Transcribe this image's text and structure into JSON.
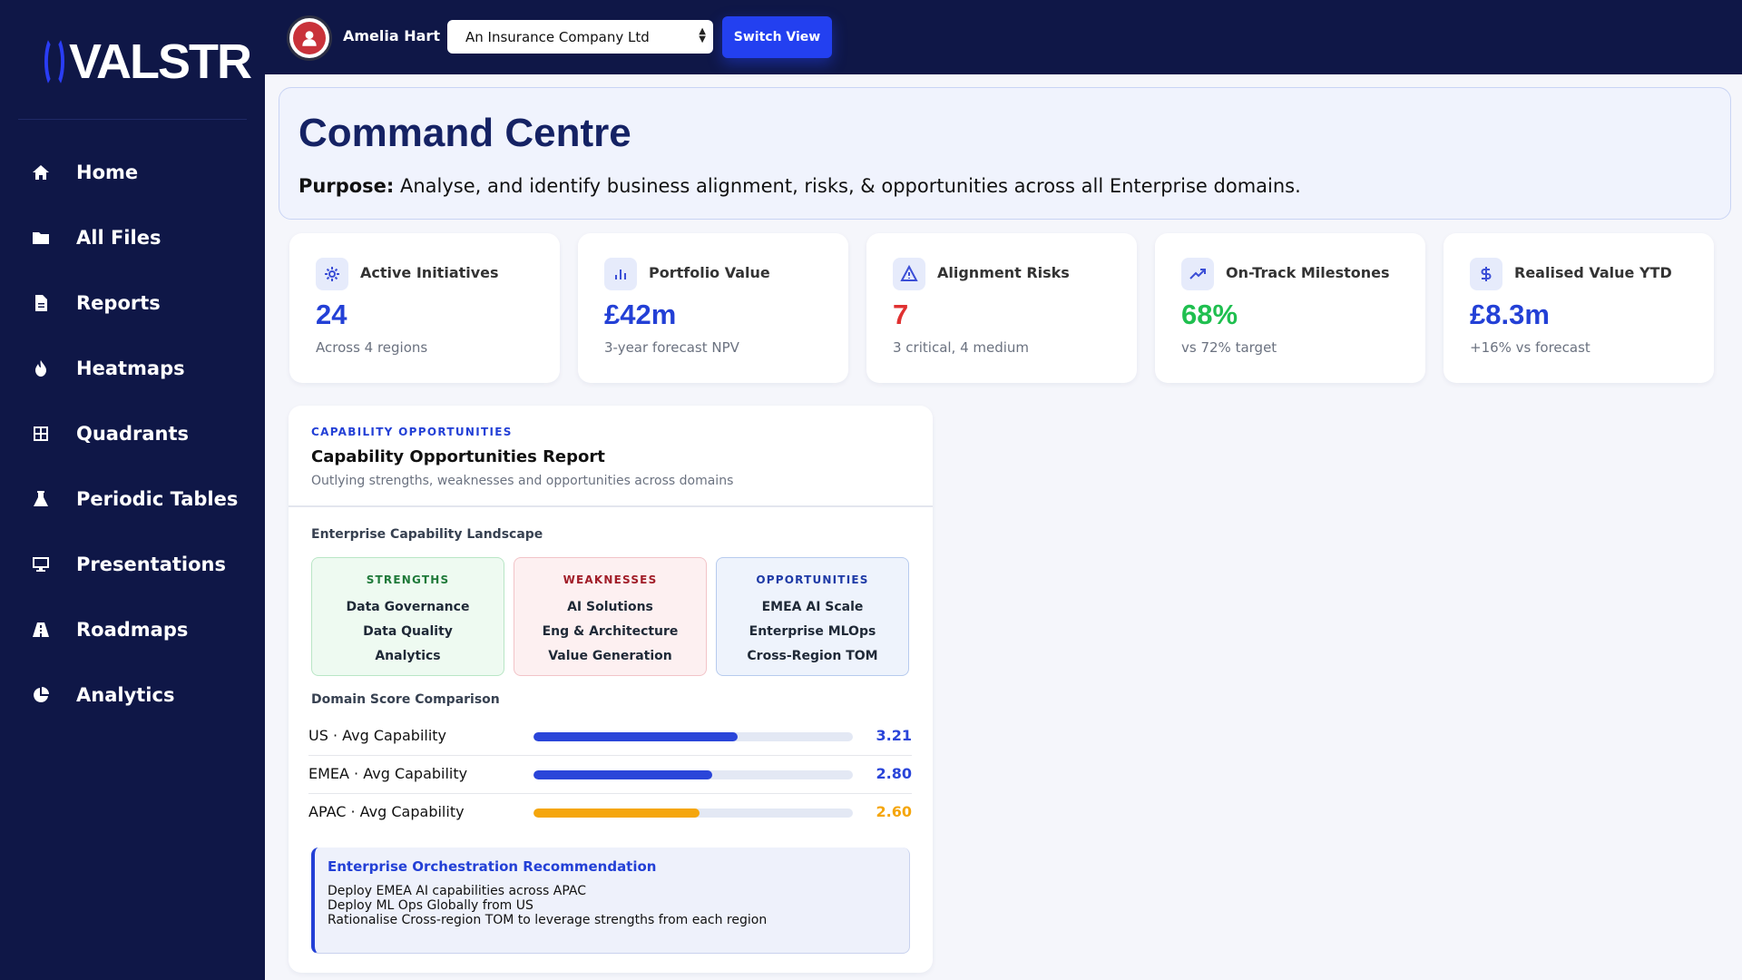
{
  "brand": {
    "logo_text": "VALSTR"
  },
  "sidebar": {
    "items": [
      {
        "label": "Home",
        "icon": "home-icon"
      },
      {
        "label": "All Files",
        "icon": "folder-icon"
      },
      {
        "label": "Reports",
        "icon": "document-icon"
      },
      {
        "label": "Heatmaps",
        "icon": "flame-icon"
      },
      {
        "label": "Quadrants",
        "icon": "grid-icon"
      },
      {
        "label": "Periodic Tables",
        "icon": "flask-icon"
      },
      {
        "label": "Presentations",
        "icon": "monitor-icon"
      },
      {
        "label": "Roadmaps",
        "icon": "road-icon"
      },
      {
        "label": "Analytics",
        "icon": "pie-chart-icon"
      }
    ]
  },
  "topbar": {
    "user_name": "Amelia Hart",
    "company_selected": "An Insurance Company Ltd",
    "switch_label": "Switch View"
  },
  "header": {
    "title": "Command Centre",
    "purpose_label": "Purpose:",
    "purpose_text": " Analyse, and identify business alignment, risks, & opportunities across all Enterprise domains."
  },
  "kpis": [
    {
      "label": "Active Initiatives",
      "value": "24",
      "sub": "Across 4 regions",
      "color": "#2340d6",
      "icon": "sparkle-icon"
    },
    {
      "label": "Portfolio Value",
      "value": "£42m",
      "sub": "3-year forecast NPV",
      "color": "#2340d6",
      "icon": "bar-chart-icon"
    },
    {
      "label": "Alignment Risks",
      "value": "7",
      "sub": "3 critical, 4 medium",
      "color": "#e03131",
      "icon": "warning-icon"
    },
    {
      "label": "On-Track Milestones",
      "value": "68%",
      "sub": "vs 72% target",
      "color": "#1fbf4f",
      "icon": "trend-up-icon"
    },
    {
      "label": "Realised Value YTD",
      "value": "£8.3m",
      "sub": "+16% vs forecast",
      "color": "#2340d6",
      "icon": "dollar-icon"
    }
  ],
  "capability": {
    "eyebrow": "CAPABILITY OPPORTUNITIES",
    "title": "Capability Opportunities Report",
    "subtitle": "Outlying strengths, weaknesses and opportunities across domains",
    "landscape_label": "Enterprise Capability Landscape",
    "strengths": {
      "title": "STRENGTHS",
      "items": [
        "Data Governance",
        "Data Quality",
        "Analytics"
      ]
    },
    "weaknesses": {
      "title": "WEAKNESSES",
      "items": [
        "AI Solutions",
        "Eng & Architecture",
        "Value Generation"
      ]
    },
    "opportunities": {
      "title": "OPPORTUNITIES",
      "items": [
        "EMEA AI Scale",
        "Enterprise MLOps",
        "Cross-Region TOM"
      ]
    },
    "score_label": "Domain Score Comparison",
    "scores": [
      {
        "name": "US · Avg Capability",
        "value": "3.21",
        "fill_fraction": 0.64,
        "color": "#2a45d9"
      },
      {
        "name": "EMEA · Avg Capability",
        "value": "2.80",
        "fill_fraction": 0.56,
        "color": "#2a45d9"
      },
      {
        "name": "APAC · Avg Capability",
        "value": "2.60",
        "fill_fraction": 0.52,
        "color": "#f5a60c"
      }
    ],
    "recommendation": {
      "title": "Enterprise Orchestration Recommendation",
      "lines": [
        "Deploy EMEA AI capabilities across APAC",
        "Deploy ML Ops Globally from US",
        "Rationalise Cross-region TOM to leverage strengths from each region"
      ]
    }
  }
}
